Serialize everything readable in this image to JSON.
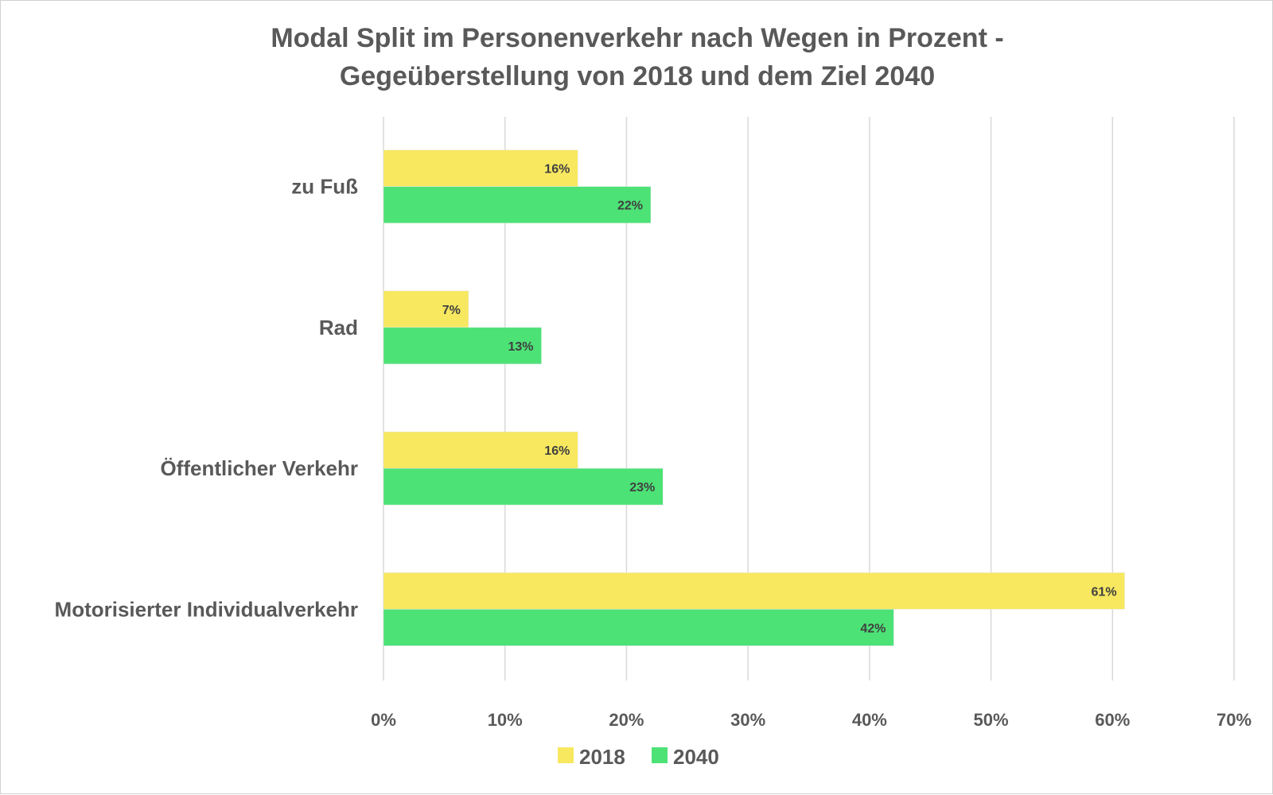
{
  "chart_data": {
    "type": "bar",
    "orientation": "horizontal",
    "title": "Modal Split im Personenverkehr nach Wegen in Prozent - Gegeüberstellung von 2018 und dem Ziel 2040",
    "title_lines": [
      "Modal Split im Personenverkehr nach Wegen in Prozent -",
      "Gegeüberstellung von 2018 und dem Ziel 2040"
    ],
    "categories": [
      "zu Fuß",
      "Rad",
      "Öffentlicher Verkehr",
      "Motorisierter Individualverkehr"
    ],
    "series": [
      {
        "name": "2018",
        "color": "#f7e85f",
        "values": [
          16,
          7,
          16,
          61
        ]
      },
      {
        "name": "2040",
        "color": "#4ce276",
        "values": [
          22,
          13,
          23,
          42
        ]
      }
    ],
    "value_suffix": "%",
    "xlim": [
      0,
      70
    ],
    "x_ticks": [
      0,
      10,
      20,
      30,
      40,
      50,
      60,
      70
    ],
    "x_tick_labels": [
      "0%",
      "10%",
      "20%",
      "30%",
      "40%",
      "50%",
      "60%",
      "70%"
    ],
    "grid": true,
    "gridline_color": "#d9d9d9",
    "legend_position": "bottom"
  }
}
